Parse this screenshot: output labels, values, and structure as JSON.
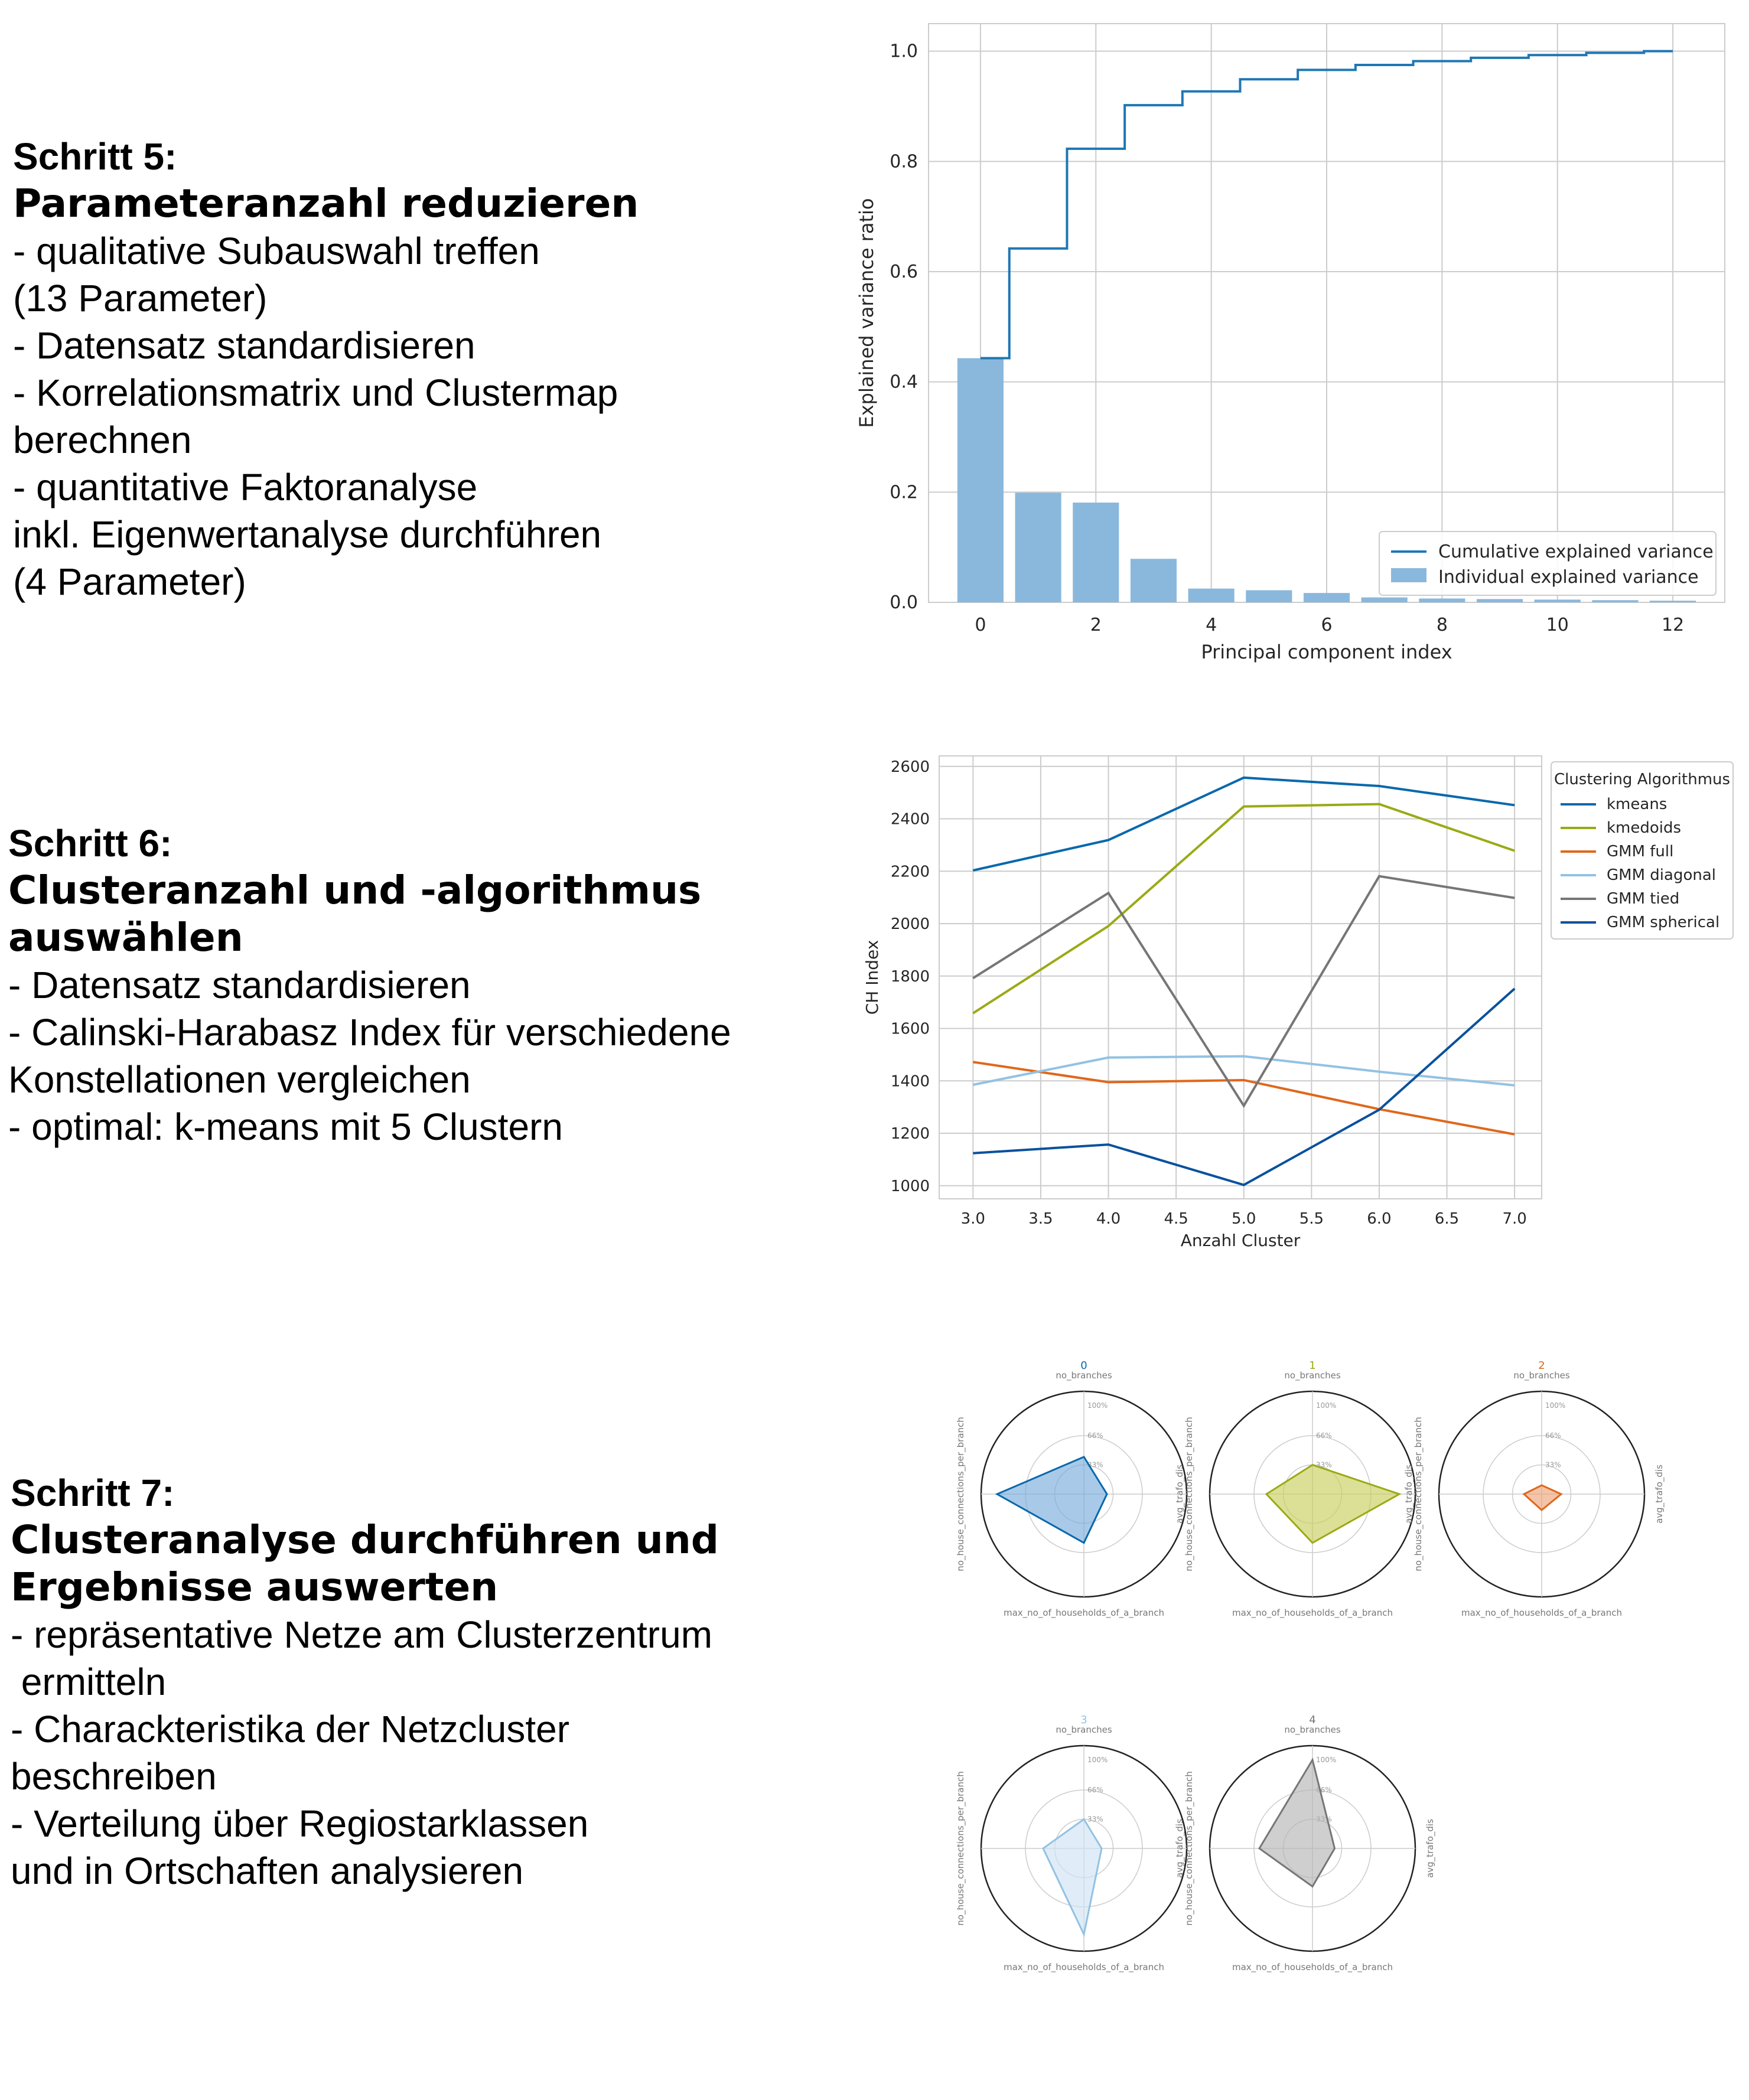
{
  "steps": [
    {
      "title": "Schritt 5:",
      "subtitle": "Parameteranzahl reduzieren",
      "lines": [
        "- qualitative Subauswahl treffen",
        "(13 Parameter)",
        "- Datensatz standardisieren",
        "- Korrelationsmatrix und Clustermap",
        "berechnen",
        "- quantitative Faktoranalyse",
        "inkl. Eigenwertanalyse durchführen",
        "(4 Parameter)"
      ]
    },
    {
      "title": "Schritt 6:",
      "subtitle": "Clusteranzahl und -algorithmus\nauswählen",
      "lines": [
        "- Datensatz standardisieren",
        "- Calinski-Harabasz Index für verschiedene",
        "Konstellationen vergleichen",
        "- optimal: k-means mit 5 Clustern"
      ]
    },
    {
      "title": "Schritt 7:",
      "subtitle": "Clusteranalyse durchführen und\nErgebnisse auswerten",
      "lines": [
        "- repräsentative Netze am Clusterzentrum",
        " ermitteln",
        "- Charackteristika der Netzcluster",
        "beschreiben",
        "- Verteilung über Regiostarklassen",
        "und in Ortschaften analysieren"
      ]
    }
  ],
  "chart_data": [
    {
      "type": "bar",
      "xlabel": "Principal component index",
      "ylabel": "Explained variance ratio",
      "x": [
        0,
        1,
        2,
        3,
        4,
        5,
        6,
        7,
        8,
        9,
        10,
        11,
        12
      ],
      "x_ticks": [
        "0",
        "2",
        "4",
        "6",
        "8",
        "10",
        "12"
      ],
      "y_ticks": [
        "0.0",
        "0.2",
        "0.4",
        "0.6",
        "0.8",
        "1.0"
      ],
      "ylim": [
        0,
        1.05
      ],
      "xlim": [
        -0.9,
        12.9
      ],
      "grid": true,
      "legend_position": "bottom-right",
      "series": [
        {
          "name": "Cumulative explained variance",
          "kind": "step",
          "color": "#1f77b4",
          "values": [
            0.443,
            0.642,
            0.823,
            0.902,
            0.927,
            0.949,
            0.966,
            0.975,
            0.982,
            0.988,
            0.993,
            0.997,
            1.0
          ]
        },
        {
          "name": "Individual explained variance",
          "kind": "bar",
          "color": "#8ab8dc",
          "values": [
            0.443,
            0.199,
            0.181,
            0.079,
            0.025,
            0.022,
            0.017,
            0.009,
            0.007,
            0.006,
            0.005,
            0.004,
            0.003
          ]
        }
      ]
    },
    {
      "type": "line",
      "xlabel": "Anzahl Cluster",
      "ylabel": "CH Index",
      "x": [
        3,
        4,
        5,
        6,
        7
      ],
      "x_ticks": [
        "3.0",
        "3.5",
        "4.0",
        "4.5",
        "5.0",
        "5.5",
        "6.0",
        "6.5",
        "7.0"
      ],
      "y_ticks": [
        "1000",
        "1200",
        "1400",
        "1600",
        "1800",
        "2000",
        "2200",
        "2400",
        "2600"
      ],
      "xlim": [
        2.75,
        7.2
      ],
      "ylim": [
        950,
        2640
      ],
      "grid": true,
      "legend_title": "Clustering Algorithmus",
      "legend_position": "outside-right",
      "series": [
        {
          "name": "kmeans",
          "color": "#0868ac",
          "values": [
            2203,
            2319,
            2557,
            2525,
            2452
          ]
        },
        {
          "name": "kmedoids",
          "color": "#9aaa15",
          "values": [
            1658,
            1991,
            2447,
            2456,
            2278
          ]
        },
        {
          "name": "GMM full",
          "color": "#e0671b",
          "values": [
            1472,
            1395,
            1403,
            1292,
            1196
          ]
        },
        {
          "name": "GMM diagonal",
          "color": "#93c2e3",
          "values": [
            1385,
            1489,
            1494,
            1435,
            1383
          ]
        },
        {
          "name": "GMM tied",
          "color": "#767676",
          "values": [
            1792,
            2117,
            1305,
            2181,
            2098
          ]
        },
        {
          "name": "GMM spherical",
          "color": "#08519c",
          "values": [
            1124,
            1157,
            1003,
            1290,
            1752
          ]
        }
      ]
    },
    {
      "type": "radar",
      "axes": [
        "no_branches",
        "avg_trafo_dis",
        "max_no_of_households_of_a_branch",
        "no_house_connections_per_branch"
      ],
      "ring_labels": [
        "33%",
        "66%",
        "100%"
      ],
      "clusters": [
        {
          "name": "0",
          "color": "#0868ac",
          "fill": "#7aaedb",
          "values": [
            0.42,
            0.26,
            0.55,
            0.98
          ],
          "axis_labels": [
            "no_branches",
            "",
            "max_no_of_households_of_a_branch",
            "no_house_connections_per_branch"
          ]
        },
        {
          "name": "1",
          "color": "#9aaa15",
          "fill": "#c9d05d",
          "values": [
            0.33,
            0.98,
            0.55,
            0.52
          ],
          "axis_labels": [
            "no_branches",
            "",
            "max_no_of_households_of_a_branch",
            "avg_trafo_dis\nno_house_connections_per_branch"
          ]
        },
        {
          "name": "2",
          "color": "#e0671b",
          "fill": "#eea57a",
          "values": [
            0.1,
            0.22,
            0.18,
            0.2
          ],
          "axis_labels": [
            "no_branches",
            "avg_trafo_dis",
            "max_no_of_households_of_a_branch",
            "avg_trafo_dis\nno_house_connections_per_branch"
          ]
        },
        {
          "name": "3",
          "color": "#93c2e3",
          "fill": "#cfe4f4",
          "values": [
            0.33,
            0.2,
            0.97,
            0.46
          ],
          "axis_labels": [
            "no_branches",
            "",
            "max_no_of_households_of_a_branch",
            "no_house_connections_per_branch"
          ]
        },
        {
          "name": "4",
          "color": "#767676",
          "fill": "#b5b5b5",
          "values": [
            1.0,
            0.25,
            0.43,
            0.6
          ],
          "axis_labels": [
            "no_branches",
            "avg_trafo_dis",
            "max_no_of_households_of_a_branch",
            "avg_trafo_dis\nno_house_connections_per_branch"
          ]
        }
      ]
    }
  ]
}
